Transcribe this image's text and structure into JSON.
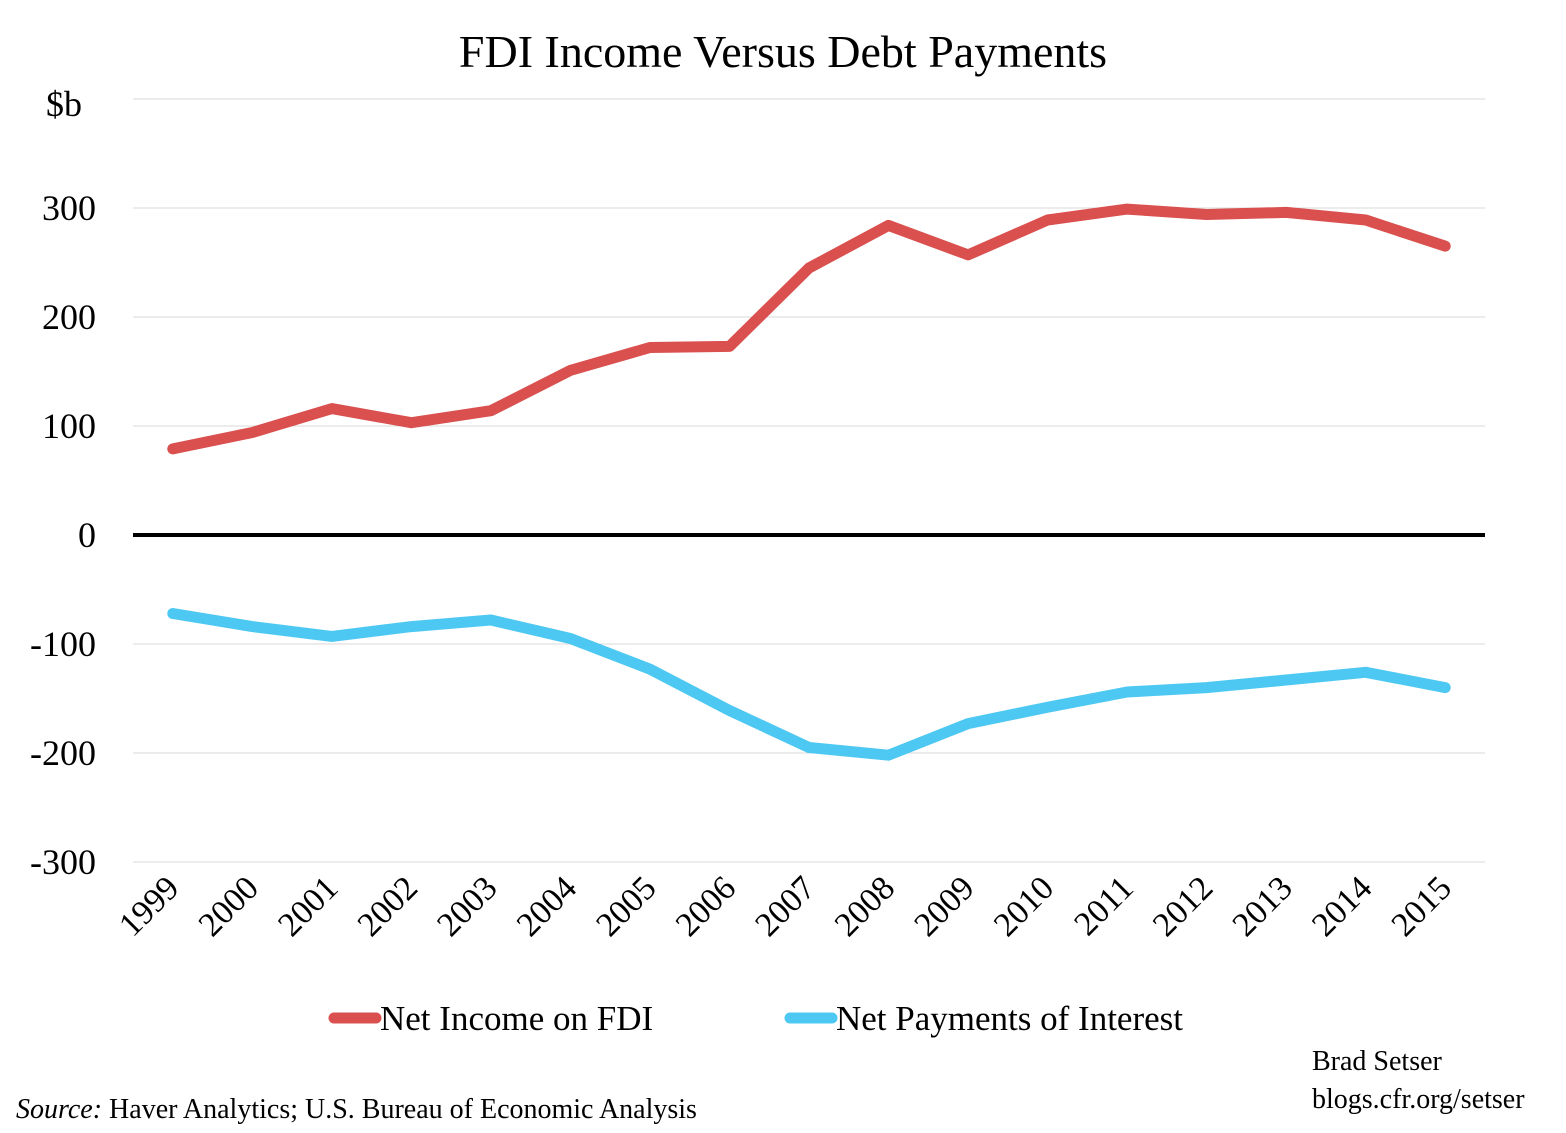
{
  "chart_data": {
    "type": "line",
    "title": "FDI Income Versus Debt Payments",
    "ylabel": "$b",
    "xlabel": "",
    "x": [
      "1999",
      "2000",
      "2001",
      "2002",
      "2003",
      "2004",
      "2005",
      "2006",
      "2007",
      "2008",
      "2009",
      "2010",
      "2011",
      "2012",
      "2013",
      "2014",
      "2015"
    ],
    "ylim": [
      -300,
      400
    ],
    "yticks": [
      -300,
      -200,
      -100,
      0,
      100,
      200,
      300
    ],
    "ytick_labels": [
      "-300",
      "-200",
      "-100",
      "0",
      "100",
      "200",
      "300"
    ],
    "grid": true,
    "legend_position": "bottom",
    "series": [
      {
        "name": "Net Income on FDI",
        "color": "#d9504f",
        "values": [
          79,
          94,
          116,
          103,
          114,
          151,
          172,
          173,
          245,
          284,
          257,
          289,
          299,
          294,
          296,
          289,
          265
        ]
      },
      {
        "name": "Net Payments of Interest",
        "color": "#4dc8f2",
        "values": [
          -72,
          -84,
          -93,
          -84,
          -78,
          -95,
          -123,
          -161,
          -195,
          -202,
          -173,
          -158,
          -144,
          -140,
          -133,
          -126,
          -140
        ]
      }
    ],
    "zero_line_color": "#000000",
    "grid_color": "#d9d9d9"
  },
  "credit": {
    "line1": "Brad Setser",
    "line2": "blogs.cfr.org/setser"
  },
  "source": {
    "label": "Source:",
    "text": " Haver Analytics; U.S. Bureau of Economic Analysis"
  }
}
